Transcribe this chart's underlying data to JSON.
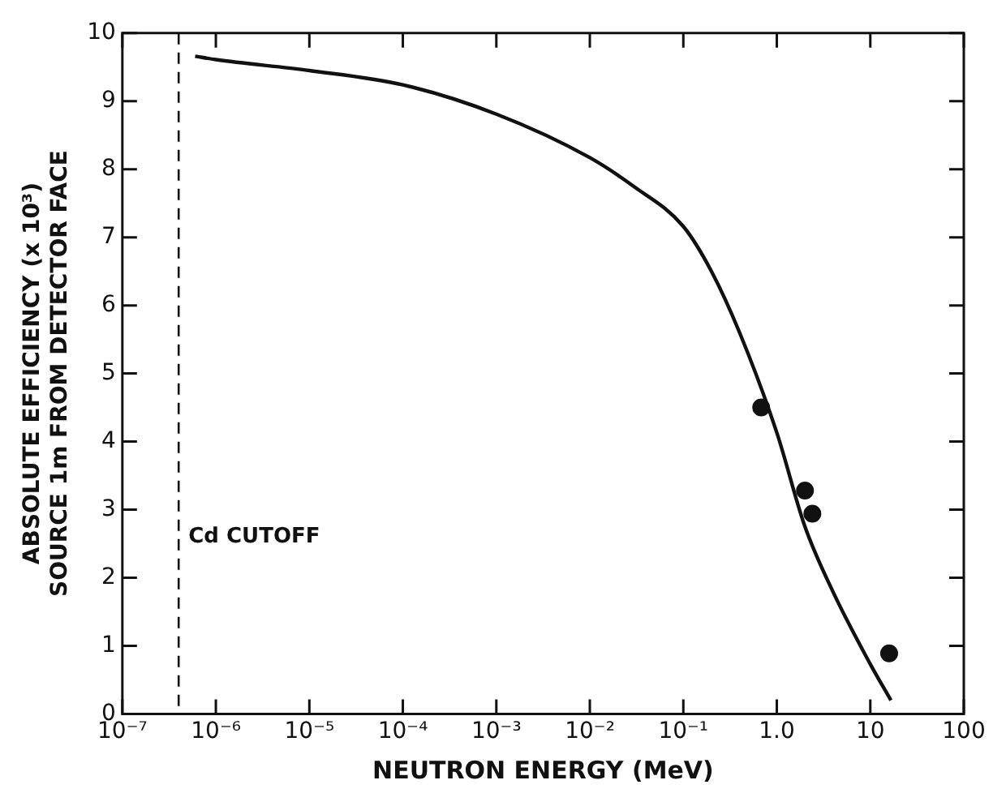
{
  "chart_data": {
    "type": "line",
    "xlabel": "NEUTRON ENERGY (MeV)",
    "ylabel": "ABSOLUTE EFFICIENCY (x 10³)\nSOURCE 1m FROM DETECTOR FACE",
    "log": "x",
    "grid": false,
    "legend": false,
    "xlim": [
      1e-07,
      100
    ],
    "xticks": [
      {
        "value": 1e-07,
        "label": "10⁻⁷"
      },
      {
        "value": 1e-06,
        "label": "10⁻⁶"
      },
      {
        "value": 1e-05,
        "label": "10⁻⁵"
      },
      {
        "value": 0.0001,
        "label": "10⁻⁴"
      },
      {
        "value": 0.001,
        "label": "10⁻³"
      },
      {
        "value": 0.01,
        "label": "10⁻²"
      },
      {
        "value": 0.1,
        "label": "10⁻¹"
      },
      {
        "value": 1,
        "label": "1.0"
      },
      {
        "value": 10,
        "label": "10"
      },
      {
        "value": 100,
        "label": "100"
      }
    ],
    "ylim": [
      0,
      10
    ],
    "yticks": [
      0,
      1,
      2,
      3,
      4,
      5,
      6,
      7,
      8,
      9,
      10
    ],
    "ref_lines": [
      {
        "axis": "x",
        "value": 4e-07,
        "label": "Cd CUTOFF",
        "line_style": "dashed",
        "color": "#111111"
      }
    ],
    "series": [
      {
        "color": "#111111",
        "marker": "none",
        "line_style": "solid",
        "x": [
          6e-07,
          1e-06,
          1e-05,
          0.0001,
          0.001,
          0.01,
          0.03,
          0.1,
          0.2,
          0.4,
          1,
          2,
          4,
          10,
          16.6
        ],
        "values": [
          9.66,
          9.61,
          9.45,
          9.24,
          8.81,
          8.17,
          7.74,
          7.16,
          6.5,
          5.6,
          4.13,
          2.75,
          1.79,
          0.73,
          0.2
        ]
      },
      {
        "type": "scatter",
        "color": "#111111",
        "marker": "circle",
        "x": [
          0.68,
          2.0,
          2.4,
          15.9
        ],
        "values": [
          4.5,
          3.28,
          2.94,
          0.89
        ]
      }
    ]
  }
}
